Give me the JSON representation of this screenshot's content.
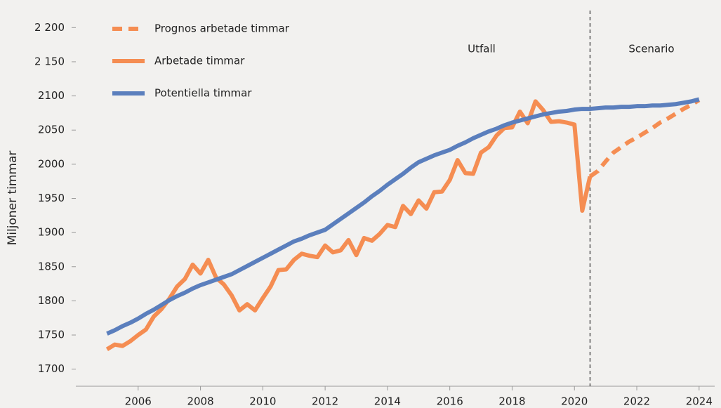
{
  "chart_data": {
    "type": "line",
    "y_label": "Miljoner timmar",
    "annotations": [
      "Utfall",
      "Scenario"
    ],
    "vline": 2020.5,
    "x": [
      2005,
      2005.25,
      2005.5,
      2005.75,
      2006,
      2006.25,
      2006.5,
      2006.75,
      2007,
      2007.25,
      2007.5,
      2007.75,
      2008,
      2008.25,
      2008.5,
      2008.75,
      2009,
      2009.25,
      2009.5,
      2009.75,
      2010,
      2010.25,
      2010.5,
      2010.75,
      2011,
      2011.25,
      2011.5,
      2011.75,
      2012,
      2012.25,
      2012.5,
      2012.75,
      2013,
      2013.25,
      2013.5,
      2013.75,
      2014,
      2014.25,
      2014.5,
      2014.75,
      2015,
      2015.25,
      2015.5,
      2015.75,
      2016,
      2016.25,
      2016.5,
      2016.75,
      2017,
      2017.25,
      2017.5,
      2017.75,
      2018,
      2018.25,
      2018.5,
      2018.75,
      2019,
      2019.25,
      2019.5,
      2019.75,
      2020,
      2020.25,
      2020.5,
      2020.75,
      2021,
      2021.25,
      2021.5,
      2021.75,
      2022,
      2022.25,
      2022.5,
      2022.75,
      2023,
      2023.25,
      2023.5,
      2023.75,
      2024
    ],
    "series": [
      {
        "name": "Prognos arbetade timmar",
        "color": "#f58d52",
        "dashed": true,
        "values": [
          null,
          null,
          null,
          null,
          null,
          null,
          null,
          null,
          null,
          null,
          null,
          null,
          null,
          null,
          null,
          null,
          null,
          null,
          null,
          null,
          null,
          null,
          null,
          null,
          null,
          null,
          null,
          null,
          null,
          null,
          null,
          null,
          null,
          null,
          null,
          null,
          null,
          null,
          null,
          null,
          null,
          null,
          null,
          null,
          null,
          null,
          null,
          null,
          null,
          null,
          null,
          null,
          null,
          null,
          null,
          null,
          null,
          null,
          null,
          null,
          null,
          null,
          1982,
          1990,
          2004,
          2017,
          2025,
          2033,
          2039,
          2046,
          2053,
          2061,
          2067,
          2074,
          2081,
          2087,
          2094
        ]
      },
      {
        "name": "Arbetade timmar",
        "color": "#f58d52",
        "dashed": false,
        "values": [
          1729,
          1736,
          1734,
          1741,
          1750,
          1758,
          1777,
          1788,
          1803,
          1821,
          1832,
          1853,
          1840,
          1860,
          1834,
          1824,
          1808,
          1786,
          1795,
          1786,
          1804,
          1821,
          1845,
          1846,
          1860,
          1869,
          1866,
          1864,
          1881,
          1871,
          1874,
          1889,
          1867,
          1892,
          1888,
          1898,
          1911,
          1908,
          1939,
          1927,
          1947,
          1935,
          1959,
          1960,
          1977,
          2006,
          1987,
          1986,
          2017,
          2025,
          2042,
          2053,
          2054,
          2077,
          2060,
          2092,
          2079,
          2062,
          2063,
          2061,
          2058,
          1932,
          1982,
          null,
          null,
          null,
          null,
          null,
          null,
          null,
          null,
          null,
          null,
          null,
          null,
          null,
          null
        ]
      },
      {
        "name": "Potentiella timmar",
        "color": "#5b7fbd",
        "dashed": false,
        "values": [
          1752,
          1757,
          1763,
          1768,
          1774,
          1781,
          1787,
          1794,
          1801,
          1807,
          1812,
          1818,
          1823,
          1827,
          1831,
          1835,
          1839,
          1845,
          1851,
          1857,
          1863,
          1869,
          1875,
          1881,
          1887,
          1891,
          1896,
          1900,
          1904,
          1912,
          1920,
          1928,
          1936,
          1944,
          1953,
          1961,
          1970,
          1978,
          1986,
          1995,
          2003,
          2008,
          2013,
          2017,
          2021,
          2027,
          2032,
          2038,
          2043,
          2048,
          2052,
          2057,
          2061,
          2064,
          2067,
          2070,
          2073,
          2075,
          2077,
          2078,
          2080,
          2081,
          2081,
          2082,
          2083,
          2083,
          2084,
          2084,
          2085,
          2085,
          2086,
          2086,
          2087,
          2088,
          2090,
          2092,
          2095
        ]
      }
    ],
    "xlim": [
      2004,
      2024.5
    ],
    "xticks": [
      2006,
      2008,
      2010,
      2012,
      2014,
      2016,
      2018,
      2020,
      2022,
      2024
    ],
    "ylim": [
      1675,
      2225
    ],
    "yticks": [
      1700,
      1750,
      1800,
      1850,
      1900,
      1950,
      2000,
      2050,
      2100,
      {
        "value": 2150,
        "label": "2 150"
      },
      {
        "value": 2200,
        "label": "2 200"
      }
    ],
    "legend": "top-left"
  }
}
